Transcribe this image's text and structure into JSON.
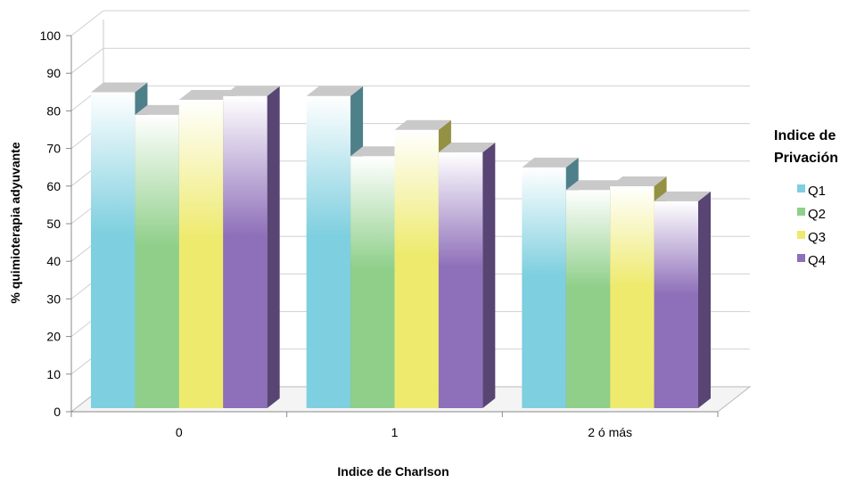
{
  "chart_data": {
    "type": "bar",
    "style": "3d-clustered-column",
    "categories": [
      "0",
      "1",
      "2 ó más"
    ],
    "series": [
      {
        "name": "Q1",
        "values": [
          84,
          83,
          64
        ],
        "color": "#7ecfdf"
      },
      {
        "name": "Q2",
        "values": [
          78,
          67,
          58
        ],
        "color": "#8fcf8a"
      },
      {
        "name": "Q3",
        "values": [
          82,
          74,
          59
        ],
        "color": "#eeea6e"
      },
      {
        "name": "Q4",
        "values": [
          83,
          68,
          55
        ],
        "color": "#8e6fb9"
      }
    ],
    "xlabel": "Indice de Charlson",
    "ylabel": "% quimioterapia adyuvante",
    "ylim": [
      0,
      100
    ],
    "yticks": [
      "0",
      "10",
      "20",
      "30",
      "40",
      "50",
      "60",
      "70",
      "80",
      "90",
      "100"
    ],
    "grid": true,
    "legend": {
      "title_lines": [
        "Indice de",
        "Privación"
      ],
      "position": "right"
    }
  }
}
